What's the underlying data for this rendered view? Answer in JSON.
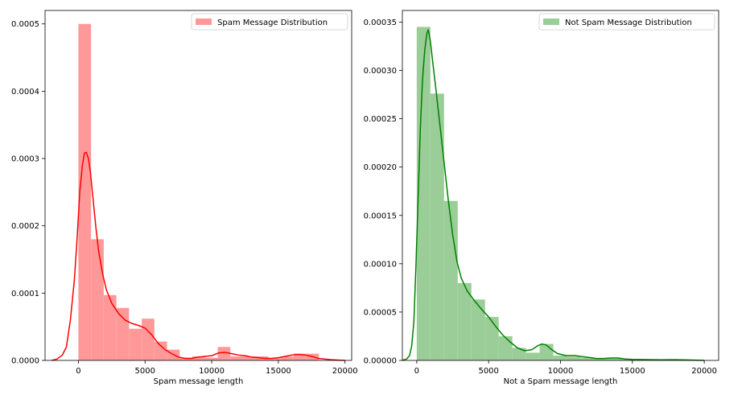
{
  "chart_data": [
    {
      "type": "bar",
      "subtype": "histogram-with-kde",
      "xlabel": "Spam message length",
      "ylabel": "",
      "xlim": [
        -2500,
        20500
      ],
      "ylim": [
        0,
        0.00052
      ],
      "xticks": [
        0,
        5000,
        10000,
        15000,
        20000
      ],
      "yticks": [
        {
          "v": 0.0,
          "label": "0.0000"
        },
        {
          "v": 0.0001,
          "label": "0.0001"
        },
        {
          "v": 0.0002,
          "label": "0.0002"
        },
        {
          "v": 0.0003,
          "label": "0.0003"
        },
        {
          "v": 0.0004,
          "label": "0.0004"
        },
        {
          "v": 0.0005,
          "label": "0.0005"
        }
      ],
      "legend": {
        "label": "Spam Message Distribution",
        "position": "top-right"
      },
      "bar_color": "#ff9999",
      "line_color": "#ff0000",
      "bins": [
        {
          "x0": 0,
          "x1": 950,
          "value": 0.0005
        },
        {
          "x0": 950,
          "x1": 1900,
          "value": 0.00018
        },
        {
          "x0": 1900,
          "x1": 2850,
          "value": 9.7e-05
        },
        {
          "x0": 2850,
          "x1": 3800,
          "value": 7.8e-05
        },
        {
          "x0": 3800,
          "x1": 4750,
          "value": 4.7e-05
        },
        {
          "x0": 4750,
          "x1": 5700,
          "value": 6.2e-05
        },
        {
          "x0": 5700,
          "x1": 6650,
          "value": 2.8e-05
        },
        {
          "x0": 6650,
          "x1": 7600,
          "value": 1.6e-05
        },
        {
          "x0": 7600,
          "x1": 8550,
          "value": 4e-06
        },
        {
          "x0": 8550,
          "x1": 9500,
          "value": 6e-06
        },
        {
          "x0": 9500,
          "x1": 10450,
          "value": 4e-06
        },
        {
          "x0": 10450,
          "x1": 11400,
          "value": 2e-05
        },
        {
          "x0": 11400,
          "x1": 12350,
          "value": 6e-06
        },
        {
          "x0": 12350,
          "x1": 13300,
          "value": 6e-06
        },
        {
          "x0": 13300,
          "x1": 14250,
          "value": 6e-06
        },
        {
          "x0": 14250,
          "x1": 15200,
          "value": 3e-06
        },
        {
          "x0": 15200,
          "x1": 16150,
          "value": 6e-06
        },
        {
          "x0": 16150,
          "x1": 17100,
          "value": 1e-05
        },
        {
          "x0": 17100,
          "x1": 18050,
          "value": 1e-05
        }
      ],
      "kde": [
        [
          -2000,
          0.0
        ],
        [
          -1600,
          2e-06
        ],
        [
          -1200,
          8e-06
        ],
        [
          -900,
          2e-05
        ],
        [
          -600,
          6e-05
        ],
        [
          -300,
          0.00012
        ],
        [
          -100,
          0.00018
        ],
        [
          100,
          0.00025
        ],
        [
          300,
          0.00029
        ],
        [
          450,
          0.000308
        ],
        [
          600,
          0.000309
        ],
        [
          750,
          0.0003
        ],
        [
          900,
          0.00028
        ],
        [
          1100,
          0.00024
        ],
        [
          1300,
          0.0002
        ],
        [
          1500,
          0.000165
        ],
        [
          1800,
          0.00013
        ],
        [
          2100,
          0.000105
        ],
        [
          2500,
          8.5e-05
        ],
        [
          3000,
          7e-05
        ],
        [
          3500,
          6e-05
        ],
        [
          4000,
          5.5e-05
        ],
        [
          4500,
          5.2e-05
        ],
        [
          5000,
          4.8e-05
        ],
        [
          5500,
          3.8e-05
        ],
        [
          6000,
          2.5e-05
        ],
        [
          6500,
          1.6e-05
        ],
        [
          7000,
          1e-05
        ],
        [
          7500,
          5e-06
        ],
        [
          8000,
          3e-06
        ],
        [
          8500,
          3e-06
        ],
        [
          9000,
          5e-06
        ],
        [
          9500,
          6e-06
        ],
        [
          10000,
          7e-06
        ],
        [
          10500,
          1.1e-05
        ],
        [
          11000,
          1.2e-05
        ],
        [
          11500,
          1e-05
        ],
        [
          12000,
          8e-06
        ],
        [
          12500,
          7e-06
        ],
        [
          13000,
          5e-06
        ],
        [
          13500,
          4e-06
        ],
        [
          14000,
          3e-06
        ],
        [
          14500,
          3e-06
        ],
        [
          15000,
          4e-06
        ],
        [
          15500,
          6e-06
        ],
        [
          16000,
          8e-06
        ],
        [
          16500,
          9e-06
        ],
        [
          17000,
          8e-06
        ],
        [
          17500,
          6e-06
        ],
        [
          18000,
          3e-06
        ],
        [
          18500,
          2e-06
        ],
        [
          19000,
          1e-06
        ],
        [
          19500,
          5e-07
        ],
        [
          20000,
          0.0
        ]
      ]
    },
    {
      "type": "bar",
      "subtype": "histogram-with-kde",
      "xlabel": "Not a Spam message length",
      "ylabel": "",
      "xlim": [
        -1000,
        21000
      ],
      "ylim": [
        0,
        0.000362
      ],
      "xticks": [
        0,
        5000,
        10000,
        15000,
        20000
      ],
      "yticks": [
        {
          "v": 0.0,
          "label": "0.00000"
        },
        {
          "v": 5e-05,
          "label": "0.00005"
        },
        {
          "v": 0.0001,
          "label": "0.00010"
        },
        {
          "v": 0.00015,
          "label": "0.00015"
        },
        {
          "v": 0.0002,
          "label": "0.00020"
        },
        {
          "v": 0.00025,
          "label": "0.00025"
        },
        {
          "v": 0.0003,
          "label": "0.00030"
        },
        {
          "v": 0.00035,
          "label": "0.00035"
        }
      ],
      "legend": {
        "label": "Not Spam Message Distribution",
        "position": "top-right"
      },
      "bar_color": "#9acd98",
      "line_color": "#008000",
      "bins": [
        {
          "x0": 0,
          "x1": 950,
          "value": 0.000345
        },
        {
          "x0": 950,
          "x1": 1900,
          "value": 0.000276
        },
        {
          "x0": 1900,
          "x1": 2850,
          "value": 0.000165
        },
        {
          "x0": 2850,
          "x1": 3800,
          "value": 8e-05
        },
        {
          "x0": 3800,
          "x1": 4750,
          "value": 6.3e-05
        },
        {
          "x0": 4750,
          "x1": 5700,
          "value": 4.5e-05
        },
        {
          "x0": 5700,
          "x1": 6650,
          "value": 2.5e-05
        },
        {
          "x0": 6650,
          "x1": 7600,
          "value": 1.3e-05
        },
        {
          "x0": 7600,
          "x1": 8550,
          "value": 8e-06
        },
        {
          "x0": 8550,
          "x1": 9500,
          "value": 1.7e-05
        },
        {
          "x0": 9500,
          "x1": 10450,
          "value": 5e-06
        },
        {
          "x0": 10450,
          "x1": 11400,
          "value": 4e-06
        },
        {
          "x0": 11400,
          "x1": 12350,
          "value": 3e-06
        },
        {
          "x0": 12350,
          "x1": 13300,
          "value": 2e-06
        },
        {
          "x0": 13300,
          "x1": 14250,
          "value": 2e-06
        },
        {
          "x0": 14250,
          "x1": 15200,
          "value": 1e-06
        },
        {
          "x0": 15200,
          "x1": 16150,
          "value": 1e-06
        },
        {
          "x0": 16150,
          "x1": 17100,
          "value": 8e-07
        },
        {
          "x0": 17100,
          "x1": 18050,
          "value": 8e-07
        },
        {
          "x0": 18050,
          "x1": 19000,
          "value": 8e-07
        }
      ],
      "kde": [
        [
          -1000,
          0.0
        ],
        [
          -700,
          1.5e-06
        ],
        [
          -500,
          5e-06
        ],
        [
          -350,
          1.5e-05
        ],
        [
          -200,
          4e-05
        ],
        [
          -50,
          0.0001
        ],
        [
          100,
          0.00017
        ],
        [
          250,
          0.00024
        ],
        [
          400,
          0.00029
        ],
        [
          550,
          0.00032
        ],
        [
          700,
          0.000338
        ],
        [
          800,
          0.000342
        ],
        [
          950,
          0.00033
        ],
        [
          1100,
          0.00031
        ],
        [
          1300,
          0.000285
        ],
        [
          1600,
          0.000245
        ],
        [
          1900,
          0.000205
        ],
        [
          2200,
          0.000165
        ],
        [
          2500,
          0.00013
        ],
        [
          2800,
          0.000102
        ],
        [
          3100,
          8.5e-05
        ],
        [
          3500,
          7.2e-05
        ],
        [
          4000,
          6.2e-05
        ],
        [
          4500,
          5.3e-05
        ],
        [
          5000,
          4.5e-05
        ],
        [
          5500,
          3.5e-05
        ],
        [
          6000,
          2.6e-05
        ],
        [
          6500,
          1.9e-05
        ],
        [
          7000,
          1.3e-05
        ],
        [
          7500,
          1e-05
        ],
        [
          8000,
          1.1e-05
        ],
        [
          8400,
          1.5e-05
        ],
        [
          8700,
          1.7e-05
        ],
        [
          9000,
          1.6e-05
        ],
        [
          9400,
          1.1e-05
        ],
        [
          9800,
          7e-06
        ],
        [
          10400,
          5e-06
        ],
        [
          11000,
          5e-06
        ],
        [
          11500,
          4e-06
        ],
        [
          12000,
          3e-06
        ],
        [
          12500,
          2e-06
        ],
        [
          13000,
          2e-06
        ],
        [
          13500,
          2.5e-06
        ],
        [
          14000,
          2.5e-06
        ],
        [
          14500,
          1.5e-06
        ],
        [
          15000,
          1e-06
        ],
        [
          16000,
          8e-07
        ],
        [
          17000,
          6e-07
        ],
        [
          18000,
          7e-07
        ],
        [
          19000,
          4e-07
        ],
        [
          20000,
          0.0
        ]
      ]
    }
  ]
}
